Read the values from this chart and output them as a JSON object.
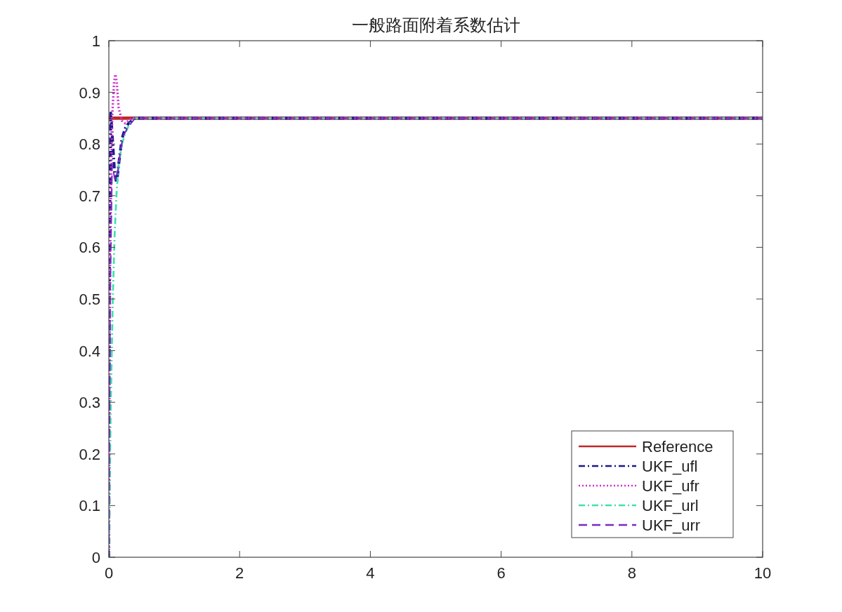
{
  "chart_data": {
    "type": "line",
    "title": "一般路面附着系数估计",
    "xlim": [
      0,
      10
    ],
    "ylim": [
      0,
      1
    ],
    "xticks": [
      0,
      2,
      4,
      6,
      8,
      10
    ],
    "yticks": [
      0,
      0.1,
      0.2,
      0.3,
      0.4,
      0.5,
      0.6,
      0.7,
      0.8,
      0.9,
      1
    ],
    "legend": "bottom right",
    "grid": false,
    "series": [
      {
        "name": "Reference",
        "color": "#c0282a",
        "line_style": "solid",
        "x": [
          0,
          10
        ],
        "values": [
          0.85,
          0.85
        ]
      },
      {
        "name": "UKF_ufl",
        "color": "#1a1a8c",
        "line_style": "dashdot",
        "x": [
          0,
          0.01,
          0.03,
          0.06,
          0.09,
          0.12,
          0.15,
          0.2,
          0.25,
          0.3,
          0.35,
          0.4,
          10
        ],
        "values": [
          0,
          0.6,
          0.86,
          0.8,
          0.74,
          0.725,
          0.76,
          0.81,
          0.83,
          0.84,
          0.845,
          0.85,
          0.85
        ]
      },
      {
        "name": "UKF_ufr",
        "color": "#d030d0",
        "line_style": "dotted",
        "x": [
          0,
          0.02,
          0.05,
          0.08,
          0.1,
          0.12,
          0.15,
          0.2,
          0.25,
          0.3,
          0.35,
          10
        ],
        "values": [
          0,
          0.6,
          0.85,
          0.92,
          0.935,
          0.92,
          0.87,
          0.845,
          0.84,
          0.845,
          0.85,
          0.85
        ]
      },
      {
        "name": "UKF_url",
        "color": "#40e0b0",
        "line_style": "dashdot",
        "x": [
          0,
          0.03,
          0.06,
          0.09,
          0.12,
          0.15,
          0.2,
          0.25,
          0.3,
          0.35,
          0.4,
          10
        ],
        "values": [
          0,
          0.3,
          0.5,
          0.63,
          0.71,
          0.76,
          0.8,
          0.82,
          0.835,
          0.845,
          0.85,
          0.85
        ]
      },
      {
        "name": "UKF_urr",
        "color": "#7a2ac0",
        "line_style": "dashed",
        "x": [
          0,
          0.02,
          0.05,
          0.08,
          0.11,
          0.14,
          0.18,
          0.22,
          0.28,
          0.34,
          0.4,
          10
        ],
        "values": [
          0,
          0.5,
          0.76,
          0.74,
          0.73,
          0.75,
          0.79,
          0.815,
          0.83,
          0.84,
          0.85,
          0.85
        ]
      }
    ]
  }
}
